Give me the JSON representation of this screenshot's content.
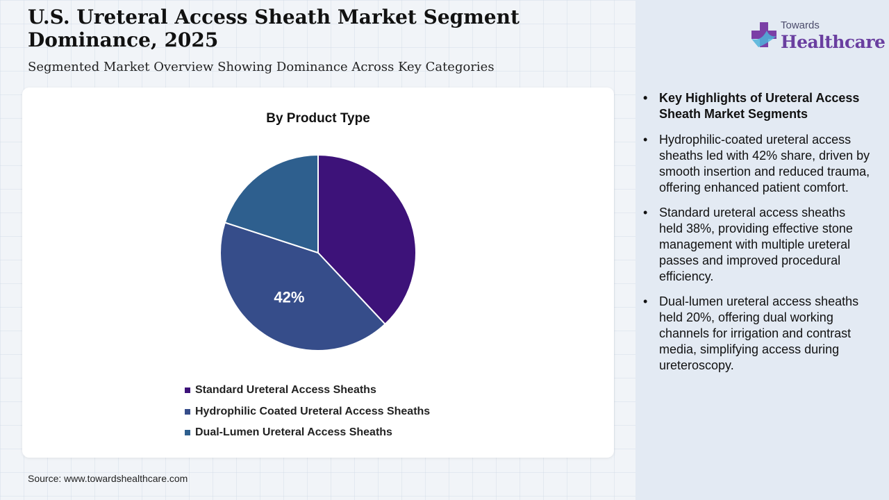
{
  "header": {
    "title": "U.S. Ureteral Access Sheath Market Segment Dominance, 2025",
    "subtitle": "Segmented Market Overview Showing Dominance Across Key Categories"
  },
  "logo": {
    "top_text": "Towards",
    "main_text": "Healthcare",
    "icon": "cross-icon",
    "colors": {
      "mark_primary": "#7b3fa6",
      "mark_secondary": "#4fb3d9",
      "text": "#6a3fa0"
    }
  },
  "chart_data": {
    "type": "pie",
    "title": "By Product Type",
    "categories": [
      "Standard Ureteral Access Sheaths",
      "Hydrophilic Coated Ureteral Access Sheaths",
      "Dual-Lumen Ureteral Access Sheaths"
    ],
    "values": [
      38,
      42,
      20
    ],
    "colors": [
      "#3d1279",
      "#364d8a",
      "#2e5f8e"
    ],
    "data_labels": [
      "",
      "42%",
      ""
    ],
    "legend_position": "bottom",
    "start_angle": "12 o'clock",
    "direction": "clockwise"
  },
  "highlights": [
    "Key Highlights of Ureteral Access Sheath Market Segments",
    "Hydrophilic-coated ureteral access sheaths led with 42% share, driven by smooth insertion and reduced trauma, offering enhanced patient comfort.",
    "Standard ureteral access sheaths held 38%, providing effective stone management with multiple ureteral passes and improved procedural efficiency.",
    "Dual-lumen ureteral access sheaths held 20%, offering dual working channels for irrigation and contrast media, simplifying access during ureteroscopy."
  ],
  "source": "Source: www.towardshealthcare.com"
}
